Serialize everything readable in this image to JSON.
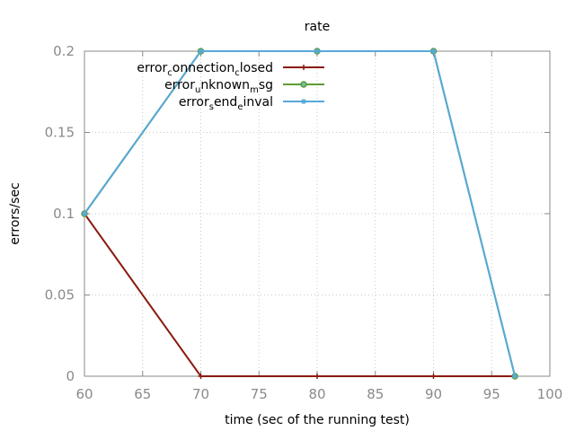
{
  "chart_data": {
    "type": "line",
    "title": "rate",
    "xlabel": "time (sec of the running test)",
    "ylabel": "errors/sec",
    "xlim": [
      60,
      100
    ],
    "ylim": [
      0,
      0.2
    ],
    "xticks": [
      60,
      65,
      70,
      75,
      80,
      85,
      90,
      95,
      100
    ],
    "yticks": [
      0,
      0.05,
      0.1,
      0.15,
      0.2
    ],
    "xtick_labels": [
      "60",
      "65",
      "70",
      "75",
      "80",
      "85",
      "90",
      "95",
      "100"
    ],
    "ytick_labels": [
      "0",
      "0.05",
      "0.1",
      "0.15",
      "0.2"
    ],
    "grid": true,
    "legend_position": "top-left",
    "series": [
      {
        "name": "error_connection_closed",
        "legend_parts": [
          [
            "error",
            false
          ],
          [
            "c",
            true
          ],
          [
            "onnection",
            false
          ],
          [
            "c",
            true
          ],
          [
            "losed",
            false
          ]
        ],
        "color": "#8b1a0e",
        "marker": "plus",
        "x": [
          60,
          70,
          80,
          90,
          97
        ],
        "y": [
          0.1,
          0,
          0,
          0,
          0
        ]
      },
      {
        "name": "error_unknown_msg",
        "legend_parts": [
          [
            "error",
            false
          ],
          [
            "u",
            true
          ],
          [
            "nknown",
            false
          ],
          [
            "m",
            true
          ],
          [
            "sg",
            false
          ]
        ],
        "color": "#5e9c36",
        "marker": "circle",
        "x": [
          60,
          70,
          80,
          90,
          97
        ],
        "y": [
          0.1,
          0.2,
          0.2,
          0.2,
          0
        ]
      },
      {
        "name": "error_send_einval",
        "legend_parts": [
          [
            "error",
            false
          ],
          [
            "s",
            true
          ],
          [
            "end",
            false
          ],
          [
            "e",
            true
          ],
          [
            "inval",
            false
          ]
        ],
        "color": "#57a8d8",
        "marker": "star",
        "x": [
          60,
          70,
          80,
          90,
          97
        ],
        "y": [
          0.1,
          0.2,
          0.2,
          0.2,
          0
        ]
      }
    ]
  }
}
